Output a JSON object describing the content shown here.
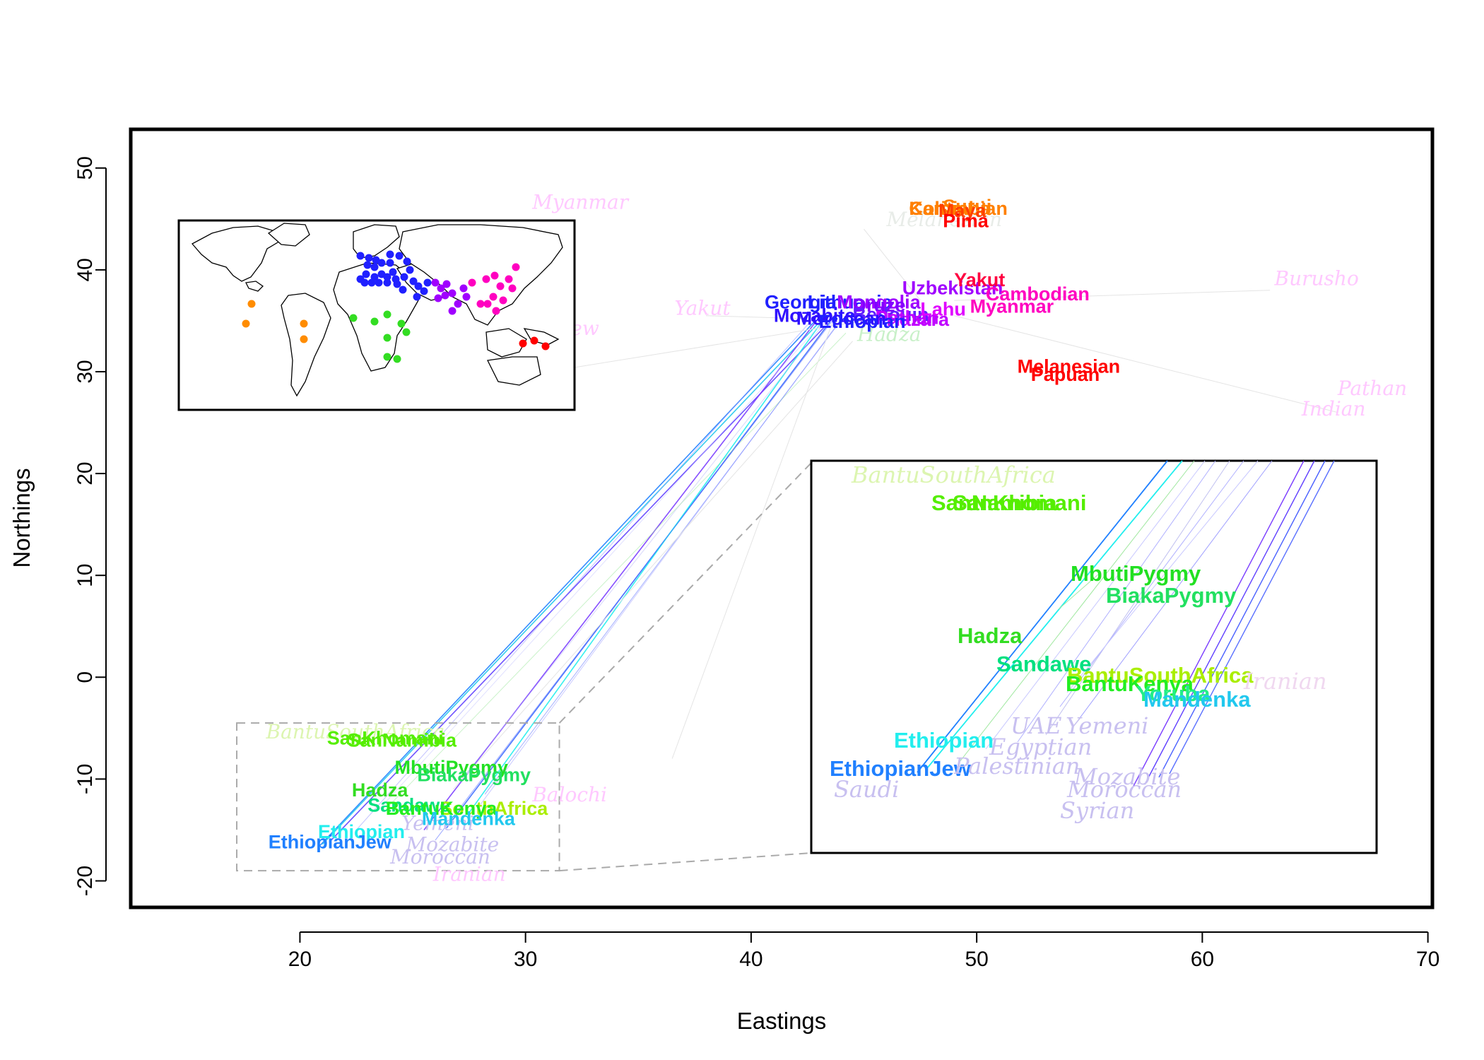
{
  "chart_data": {
    "type": "scatter",
    "title": "",
    "xlabel": "Eastings",
    "ylabel": "Northings",
    "xlim": [
      12.5,
      70.2
    ],
    "ylim": [
      -22.6,
      53.8
    ],
    "x_ticks": [
      20,
      30,
      40,
      50,
      60,
      70
    ],
    "y_ticks": [
      -20,
      -10,
      0,
      10,
      20,
      30,
      40,
      50
    ],
    "africa_zoom_region": {
      "xlim": [
        17.2,
        31.5
      ],
      "ylim": [
        -19,
        -4.5
      ]
    },
    "labels": [
      {
        "name": "Myanmar",
        "x": 30.3,
        "y": 46.0,
        "color": "#ffc8ff",
        "style": "faint"
      },
      {
        "name": "Melanesian",
        "x": 46.0,
        "y": 44.3,
        "color": "#e8ece8",
        "style": "faint"
      },
      {
        "name": "Burusho",
        "x": 63.2,
        "y": 38.5,
        "color": "#ffc8ff",
        "style": "faint"
      },
      {
        "name": "Pathan",
        "x": 66.0,
        "y": 27.7,
        "color": "#ffc8ff",
        "style": "faint"
      },
      {
        "name": "Indian",
        "x": 64.4,
        "y": 25.7,
        "color": "#ffc8ff",
        "style": "faint"
      },
      {
        "name": "IndianJew",
        "x": 28.8,
        "y": 33.6,
        "color": "#ffc8ff",
        "style": "faint"
      },
      {
        "name": "Yakut",
        "x": 36.6,
        "y": 35.6,
        "color": "#ffc8ff",
        "style": "faint"
      },
      {
        "name": "Mandenka",
        "x": 27.3,
        "y": 27.4,
        "color": "#c8f0f0",
        "style": "faint"
      },
      {
        "name": "Hadza",
        "x": 44.7,
        "y": 33.0,
        "color": "#c8f0c8",
        "style": "faint"
      },
      {
        "name": "Balochi",
        "x": 30.3,
        "y": -12.2,
        "color": "#ffc8ff",
        "style": "faint"
      },
      {
        "name": "Iranian",
        "x": 25.9,
        "y": -20.0,
        "color": "#ffc8ff",
        "style": "faint"
      },
      {
        "name": "BantuSouthAfrica",
        "x": 18.5,
        "y": -6.0,
        "color": "#dcf5b0",
        "style": "faint"
      },
      {
        "name": "Yemeni",
        "x": 24.5,
        "y": -15.0,
        "color": "#c8c0f0",
        "style": "faint"
      },
      {
        "name": "Moroccan",
        "x": 24.0,
        "y": -18.3,
        "color": "#c8c0f0",
        "style": "faint"
      },
      {
        "name": "Mozabite",
        "x": 24.7,
        "y": -17.1,
        "color": "#c8c0f0",
        "style": "faint"
      },
      {
        "name": "Karitiana",
        "x": 47.0,
        "y": 45.4,
        "color": "#ff8000",
        "style": "bold"
      },
      {
        "name": "Surui",
        "x": 48.5,
        "y": 45.6,
        "color": "#ff8000",
        "style": "bold"
      },
      {
        "name": "Colombian",
        "x": 47.0,
        "y": 45.4,
        "color": "#ff8000",
        "style": "bold"
      },
      {
        "name": "Maya",
        "x": 48.3,
        "y": 45.2,
        "color": "#ff4000",
        "style": "bold"
      },
      {
        "name": "Pima",
        "x": 48.5,
        "y": 44.2,
        "color": "#ff0000",
        "style": "bold"
      },
      {
        "name": "Uzbekistan",
        "x": 46.7,
        "y": 37.6,
        "color": "#a000ff",
        "style": "bold"
      },
      {
        "name": "Myanmar",
        "x": 49.7,
        "y": 35.8,
        "color": "#ff00c0",
        "style": "bold"
      },
      {
        "name": "Cambodian",
        "x": 50.4,
        "y": 37.0,
        "color": "#ff00c0",
        "style": "bold"
      },
      {
        "name": "Yakut",
        "x": 49.0,
        "y": 38.4,
        "color": "#ff0040",
        "style": "bold"
      },
      {
        "name": "Melanesian",
        "x": 51.8,
        "y": 29.9,
        "color": "#ff0000",
        "style": "bold"
      },
      {
        "name": "Papuan",
        "x": 52.4,
        "y": 29.1,
        "color": "#ff0000",
        "style": "bold"
      },
      {
        "name": "Georgia",
        "x": 40.6,
        "y": 36.2,
        "color": "#2020ff",
        "style": "bold"
      },
      {
        "name": "Lithuania",
        "x": 42.5,
        "y": 36.2,
        "color": "#2020ff",
        "style": "bold"
      },
      {
        "name": "Mongolia",
        "x": 43.8,
        "y": 36.2,
        "color": "#a000ff",
        "style": "bold"
      },
      {
        "name": "Druze",
        "x": 44.5,
        "y": 35.9,
        "color": "#8000ff",
        "style": "bold"
      },
      {
        "name": "Hazara",
        "x": 46.0,
        "y": 34.5,
        "color": "#c000ff",
        "style": "bold"
      },
      {
        "name": "Bedouin",
        "x": 44.5,
        "y": 35.0,
        "color": "#6020ff",
        "style": "bold"
      },
      {
        "name": "Pathan",
        "x": 45.5,
        "y": 34.7,
        "color": "#c000ff",
        "style": "bold"
      },
      {
        "name": "Lahu",
        "x": 47.5,
        "y": 35.5,
        "color": "#e000ff",
        "style": "bold"
      },
      {
        "name": "Mozabite",
        "x": 41.0,
        "y": 34.9,
        "color": "#3010ff",
        "style": "bold"
      },
      {
        "name": "Moroccan",
        "x": 42.0,
        "y": 34.6,
        "color": "#3010ff",
        "style": "bold"
      },
      {
        "name": "Ethiopian",
        "x": 43.0,
        "y": 34.3,
        "color": "#2020ff",
        "style": "bold"
      },
      {
        "name": "SanNamibia",
        "x": 22.1,
        "y": -6.8,
        "color": "#55ee00",
        "style": "bold"
      },
      {
        "name": "SanKhomani",
        "x": 21.2,
        "y": -6.6,
        "color": "#55ee00",
        "style": "bold"
      },
      {
        "name": "MbutiPygmy",
        "x": 24.2,
        "y": -9.5,
        "color": "#22e022",
        "style": "bold"
      },
      {
        "name": "BiakaPygmy",
        "x": 25.2,
        "y": -10.2,
        "color": "#22e060",
        "style": "bold"
      },
      {
        "name": "Hadza",
        "x": 22.3,
        "y": -11.7,
        "color": "#33dd22",
        "style": "bold"
      },
      {
        "name": "Sandawe",
        "x": 23.0,
        "y": -13.2,
        "color": "#00e080",
        "style": "bold"
      },
      {
        "name": "BantuSouthAfrica",
        "x": 23.8,
        "y": -13.5,
        "color": "#aaee00",
        "style": "bold"
      },
      {
        "name": "BantuKenya",
        "x": 23.8,
        "y": -13.5,
        "color": "#22ee22",
        "style": "bold"
      },
      {
        "name": "Mandenka",
        "x": 25.4,
        "y": -14.5,
        "color": "#22c8ee",
        "style": "bold"
      },
      {
        "name": "Ethiopian",
        "x": 20.8,
        "y": -15.8,
        "color": "#22eeee",
        "style": "bold"
      },
      {
        "name": "EthiopianJew",
        "x": 18.6,
        "y": -16.8,
        "color": "#2080ff",
        "style": "bold"
      }
    ],
    "inset_world_map": {
      "dot_series": [
        {
          "region": "Americas",
          "color": "#ff8c00",
          "count": 4
        },
        {
          "region": "Africa",
          "color": "#33dd22",
          "count": 8
        },
        {
          "region": "Europe",
          "color": "#2020ff",
          "count": 30
        },
        {
          "region": "Middle East / Central Asia",
          "color": "#a000ff",
          "count": 10
        },
        {
          "region": "East Asia",
          "color": "#ff00c0",
          "count": 12
        },
        {
          "region": "Oceania",
          "color": "#ff0000",
          "count": 3
        }
      ]
    },
    "zoom_inset": {
      "labels": [
        {
          "name": "BantuSouthAfrica",
          "color": "#dcf5b0",
          "style": "faint"
        },
        {
          "name": "SanNamibia",
          "color": "#55ee00",
          "style": "bold"
        },
        {
          "name": "SanKhomani",
          "color": "#55ee00",
          "style": "bold"
        },
        {
          "name": "MbutiPygmy",
          "color": "#22e022",
          "style": "bold"
        },
        {
          "name": "BiakaPygmy",
          "color": "#22e060",
          "style": "bold"
        },
        {
          "name": "Hadza",
          "color": "#33dd22",
          "style": "bold"
        },
        {
          "name": "Sandawe",
          "color": "#00e080",
          "style": "bold"
        },
        {
          "name": "BantuSouthAfrica",
          "color": "#aaee00",
          "style": "bold"
        },
        {
          "name": "BantuKenya",
          "color": "#22ee22",
          "style": "bold"
        },
        {
          "name": "Yoruba",
          "color": "#22ee88",
          "style": "bold"
        },
        {
          "name": "Mandenka",
          "color": "#22c8ee",
          "style": "bold"
        },
        {
          "name": "Ethiopian",
          "color": "#22eeee",
          "style": "bold"
        },
        {
          "name": "EthiopianJew",
          "color": "#2080ff",
          "style": "bold"
        },
        {
          "name": "UAE",
          "color": "#c8c0f0",
          "style": "faint"
        },
        {
          "name": "Yemeni",
          "color": "#c8c0f0",
          "style": "faint"
        },
        {
          "name": "Egyptian",
          "color": "#c8c0f0",
          "style": "faint"
        },
        {
          "name": "Palestinian",
          "color": "#c8c0f0",
          "style": "faint"
        },
        {
          "name": "Mozabite",
          "color": "#c8c0f0",
          "style": "faint"
        },
        {
          "name": "Moroccan",
          "color": "#c8c0f0",
          "style": "faint"
        },
        {
          "name": "Syrian",
          "color": "#c8c0f0",
          "style": "faint"
        },
        {
          "name": "Saudi",
          "color": "#c8c0f0",
          "style": "faint"
        },
        {
          "name": "Iranian",
          "color": "#f0d8f0",
          "style": "faint"
        }
      ]
    }
  }
}
